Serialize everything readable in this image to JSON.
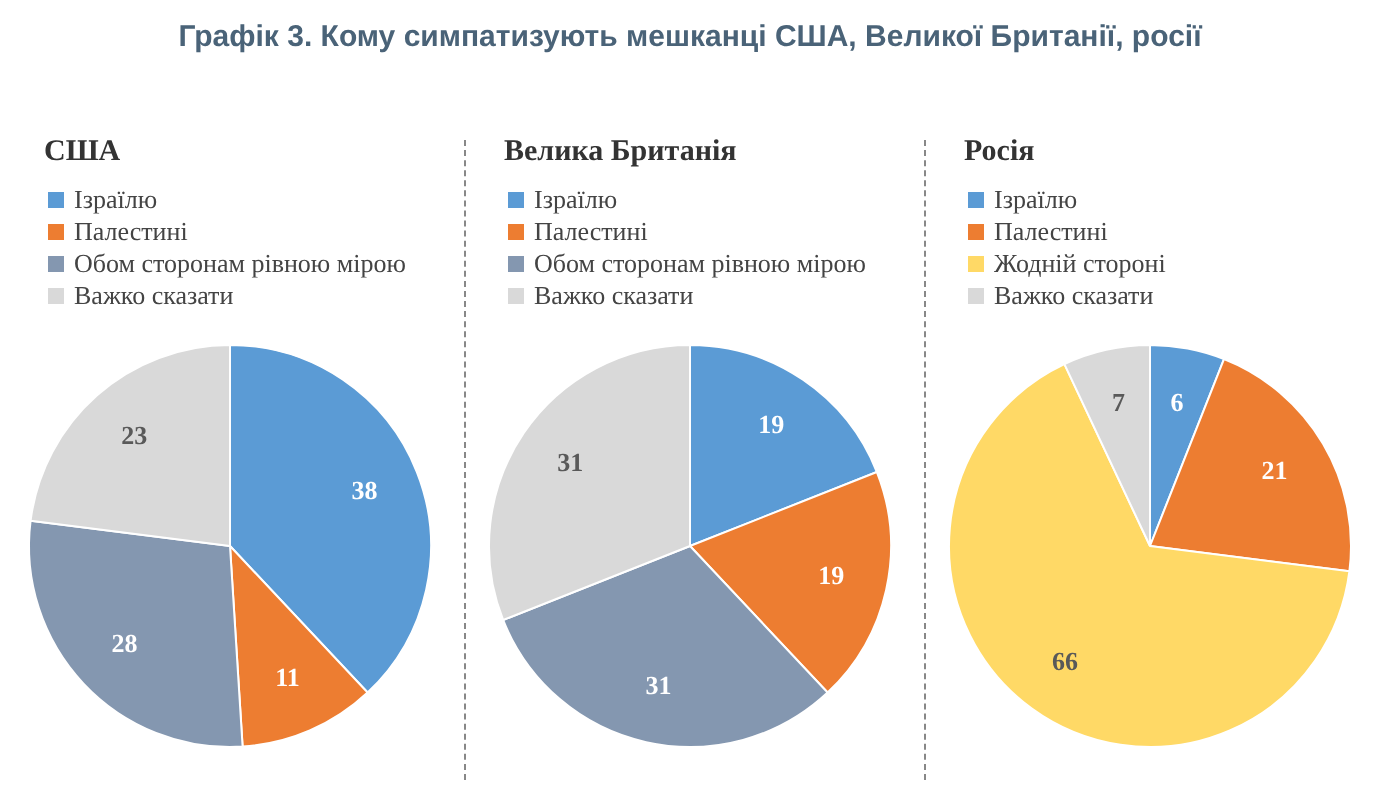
{
  "chart_data": [
    {
      "type": "pie",
      "title": "США",
      "annotations": [
        "Графік 3. Кому симпатизують мешканці США, Великої Британії, росії"
      ],
      "categories": [
        "Ізраїлю",
        "Палестині",
        "Обом сторонам рівною мірою",
        "Важко сказати"
      ],
      "values": [
        38,
        11,
        28,
        23
      ],
      "colors": [
        "#5b9bd5",
        "#ed7d31",
        "#8497b0",
        "#d9d9d9"
      ],
      "data_labels": true,
      "legend": "top left"
    },
    {
      "type": "pie",
      "title": "Велика Британія",
      "categories": [
        "Ізраїлю",
        "Палестині",
        "Обом сторонам рівною мірою",
        "Важко сказати"
      ],
      "values": [
        19,
        19,
        31,
        31
      ],
      "colors": [
        "#5b9bd5",
        "#ed7d31",
        "#8497b0",
        "#d9d9d9"
      ],
      "data_labels": true,
      "legend": "top left"
    },
    {
      "type": "pie",
      "title": "Росія",
      "categories": [
        "Ізраїлю",
        "Палестині",
        "Жодній стороні",
        "Важко сказати"
      ],
      "values": [
        6,
        21,
        66,
        7
      ],
      "colors": [
        "#5b9bd5",
        "#ed7d31",
        "#ffd966",
        "#d9d9d9"
      ],
      "data_labels": true,
      "legend": "top left"
    }
  ]
}
